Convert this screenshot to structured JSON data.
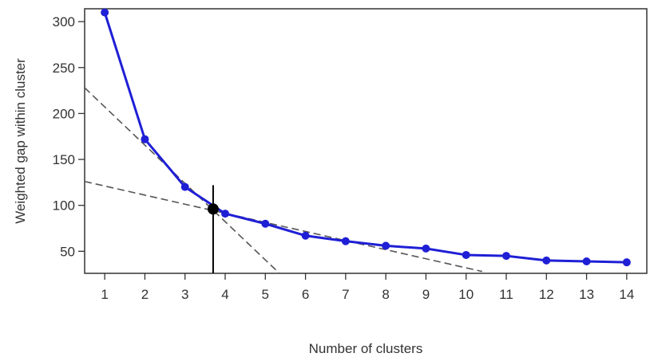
{
  "chart_data": {
    "type": "line",
    "title": "",
    "xlabel": "Number of clusters",
    "ylabel": "Weighted gap within cluster",
    "xlim": [
      0.5,
      14.5
    ],
    "ylim": [
      26,
      314
    ],
    "x_ticks": [
      1,
      2,
      3,
      4,
      5,
      6,
      7,
      8,
      9,
      10,
      11,
      12,
      13,
      14
    ],
    "y_ticks": [
      50,
      100,
      150,
      200,
      250,
      300
    ],
    "grid": false,
    "legend": "none",
    "series": [
      {
        "color": "#1f1fd6",
        "x": [
          1,
          2,
          3,
          4,
          5,
          6,
          7,
          8,
          9,
          10,
          11,
          12,
          13,
          14
        ],
        "y": [
          310,
          172,
          120,
          91,
          80,
          67,
          61,
          56,
          53,
          46,
          45,
          40,
          39,
          38
        ]
      }
    ],
    "tangent_lines": [
      {
        "style": "dashed",
        "color": "#555555",
        "x": [
          0.5,
          5.35
        ],
        "y": [
          228,
          26
        ]
      },
      {
        "style": "dashed",
        "color": "#555555",
        "x": [
          0.5,
          10.4
        ],
        "y": [
          126,
          28
        ]
      }
    ],
    "elbow": {
      "color": "#000000",
      "x": 3.7,
      "y": 96,
      "line_to_y": [
        26,
        122
      ]
    }
  }
}
